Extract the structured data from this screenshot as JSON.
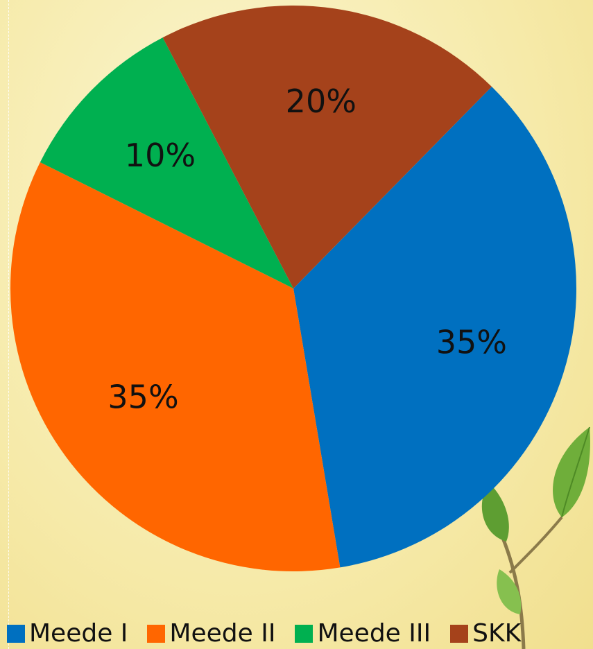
{
  "chart_data": {
    "type": "pie",
    "categories": [
      "Meede I",
      "Meede II",
      "Meede III",
      "SKK"
    ],
    "values": [
      35,
      35,
      10,
      20
    ],
    "labels": [
      "35%",
      "35%",
      "10%",
      "20%"
    ],
    "colors": [
      "#0070c0",
      "#ff6600",
      "#00b050",
      "#a5421b"
    ],
    "legend_position": "bottom",
    "title": ""
  },
  "decoration": {
    "plant_icon": "leaf-plant-icon"
  }
}
